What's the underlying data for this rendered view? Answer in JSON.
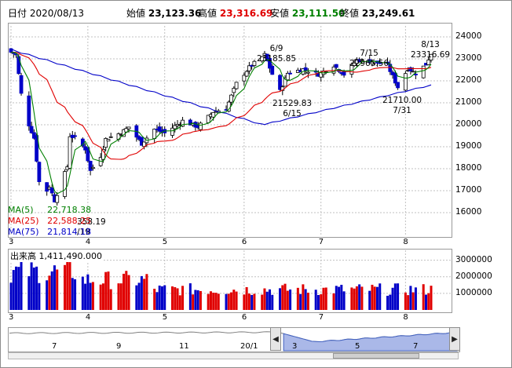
{
  "header": {
    "date_label": "日付",
    "date": "2020/08/13",
    "open_label": "始値",
    "open": "23,123.36",
    "high_label": "高値",
    "high": "23,316.69",
    "low_label": "安値",
    "low": "23,111.50",
    "close_label": "終値",
    "close": "23,249.61"
  },
  "colors": {
    "up_candle": "#ffffff",
    "down_candle": "#0000c8",
    "ma5": "#008000",
    "ma25": "#e00000",
    "ma75": "#0000c8",
    "volume_up": "#e00000",
    "volume_down": "#0000c8",
    "grid": "#c0c0c0"
  },
  "chart_data": [
    {
      "type": "candlestick",
      "title": "",
      "ylim": [
        15000,
        24500
      ],
      "yticks": [
        "24000",
        "23000",
        "22000",
        "21000",
        "20000",
        "19000",
        "18000",
        "17000",
        "16000"
      ],
      "xticks": [
        "3",
        "4",
        "5",
        "6",
        "7",
        "8"
      ],
      "x_range": [
        "2020-03-02",
        "2020-08-13"
      ],
      "tick_dates": [
        "2020-03-02",
        "2020-04-01",
        "2020-05-01",
        "2020-06-01",
        "2020-07-01",
        "2020-08-03"
      ],
      "close_path": [
        [
          "2020-03-02",
          23300
        ],
        [
          "2020-03-04",
          23200
        ],
        [
          "2020-03-06",
          21400
        ],
        [
          "2020-03-09",
          20000
        ],
        [
          "2020-03-11",
          19400
        ],
        [
          "2020-03-13",
          17400
        ],
        [
          "2020-03-16",
          17000
        ],
        [
          "2020-03-17",
          17200
        ],
        [
          "2020-03-19",
          16550
        ],
        [
          "2020-03-24",
          18100
        ],
        [
          "2020-03-25",
          19500
        ],
        [
          "2020-03-27",
          19400
        ],
        [
          "2020-03-31",
          18900
        ],
        [
          "2020-04-02",
          17900
        ],
        [
          "2020-04-06",
          18580
        ],
        [
          "2020-04-08",
          19350
        ],
        [
          "2020-04-14",
          19640
        ],
        [
          "2020-04-17",
          19900
        ],
        [
          "2020-04-22",
          19140
        ],
        [
          "2020-04-27",
          19800
        ],
        [
          "2020-05-01",
          19620
        ],
        [
          "2020-05-08",
          20180
        ],
        [
          "2020-05-14",
          19900
        ],
        [
          "2020-05-20",
          20590
        ],
        [
          "2020-05-25",
          20740
        ],
        [
          "2020-05-29",
          21880
        ],
        [
          "2020-06-03",
          22610
        ],
        [
          "2020-06-09",
          23185
        ],
        [
          "2020-06-12",
          22300
        ],
        [
          "2020-06-15",
          21530
        ],
        [
          "2020-06-18",
          22350
        ],
        [
          "2020-06-24",
          22530
        ],
        [
          "2020-06-30",
          22290
        ],
        [
          "2020-07-06",
          22710
        ],
        [
          "2020-07-10",
          22290
        ],
        [
          "2020-07-15",
          22950
        ],
        [
          "2020-07-21",
          22880
        ],
        [
          "2020-07-27",
          22700
        ],
        [
          "2020-07-31",
          21710
        ],
        [
          "2020-08-04",
          22570
        ],
        [
          "2020-08-07",
          22330
        ],
        [
          "2020-08-11",
          22750
        ],
        [
          "2020-08-13",
          23249
        ]
      ],
      "ma_legend": [
        {
          "label": "MA(5)",
          "value": "22,718.38"
        },
        {
          "label": "MA(25)",
          "value": "22,588.25"
        },
        {
          "label": "MA(75)",
          "value": "21,814.18"
        }
      ],
      "annotations": [
        {
          "date": "6/9",
          "value": "23185.85"
        },
        {
          "date": "7/15",
          "value": "22965.56"
        },
        {
          "date": "8/13",
          "value": "23316.69"
        },
        {
          "date": "6/15",
          "value": "21529.83"
        },
        {
          "date": "7/31",
          "value": "21710.00"
        },
        {
          "date": "/19",
          "value": "358.19"
        }
      ]
    },
    {
      "type": "bar",
      "label": "出来高",
      "latest": "1,411,490.000",
      "ylim": [
        0,
        3600000
      ],
      "yticks": [
        "3000000",
        "2000000",
        "1000000"
      ],
      "xticks": [
        "3",
        "4",
        "5",
        "6",
        "7",
        "8"
      ]
    },
    {
      "type": "area",
      "xticks": [
        "7",
        "9",
        "11",
        "20/1",
        "3",
        "5",
        "7"
      ],
      "ylim": [
        15000,
        24500
      ]
    }
  ]
}
